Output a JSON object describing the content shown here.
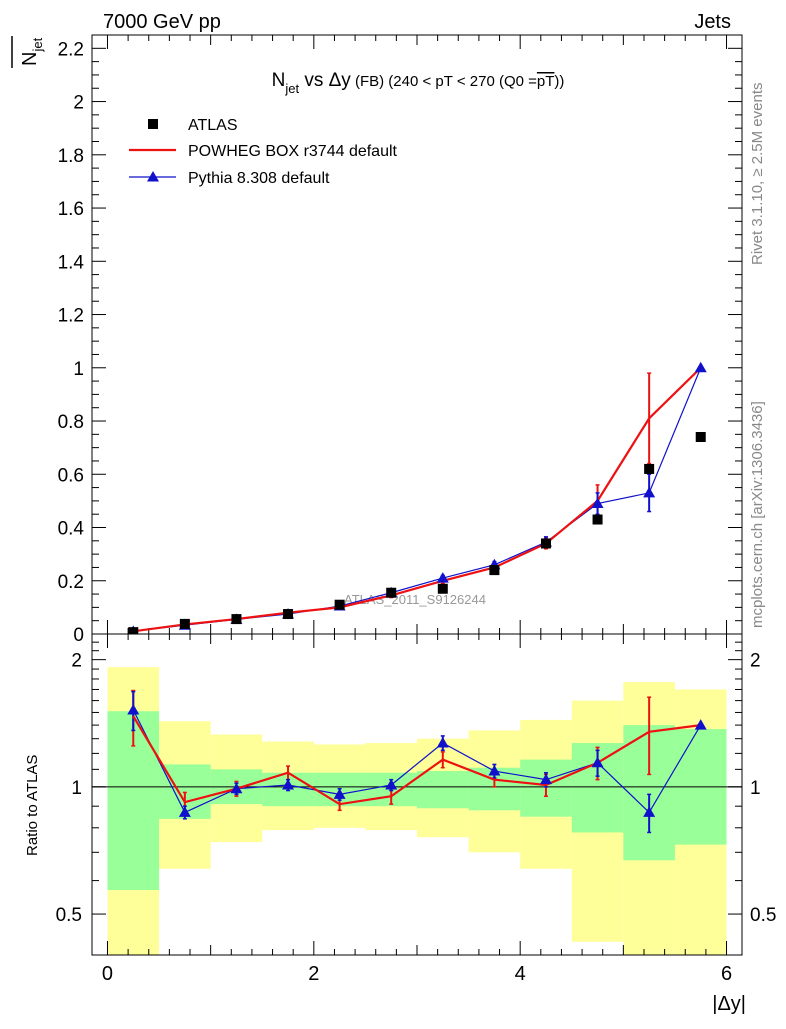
{
  "header": {
    "left": "7000 GeV pp",
    "right": "Jets",
    "title": "N",
    "title_sub": "jet",
    "title_mid": " vs Δy",
    "title_small": " (FB)",
    "title_tail": " (240 < pT < 270 (Q0 =",
    "title_over": "pT",
    "title_end": "))",
    "ylabel": "N",
    "ylabel_sub": "jet",
    "watermark": "ATLAS_2011_S9126244",
    "side_rivet": "Rivet 3.1.10, ≥ 2.5M events",
    "side_mcplots": "mcplots.cern.ch [arXiv:1306.3436]"
  },
  "legend": [
    {
      "label": "ATLAS",
      "marker": "square",
      "color": "#000000"
    },
    {
      "label": "POWHEG BOX r3744 default",
      "marker": "line",
      "color": "#ee1111"
    },
    {
      "label": "Pythia 8.308 default",
      "marker": "triangle",
      "color": "#1111cc"
    }
  ],
  "chart_data": {
    "type": "line",
    "title": "N_jet vs Δy (FB) (240 < pT < 270 (Q0 = pT))",
    "xlabel": "|Δy|",
    "ylabel": "N_jet",
    "xlim": [
      -0.15,
      6.15
    ],
    "ylim": [
      0,
      2.25
    ],
    "xticks": [
      0,
      2,
      4,
      6
    ],
    "yticks": [
      0.2,
      0.4,
      0.6,
      0.8,
      1,
      1.2,
      1.4,
      1.6,
      1.8,
      2,
      2.2
    ],
    "bin_edges": [
      0,
      0.5,
      1,
      1.5,
      2,
      2.5,
      3,
      3.5,
      4,
      4.5,
      5,
      5.5,
      6
    ],
    "x": [
      0.25,
      0.75,
      1.25,
      1.75,
      2.25,
      2.75,
      3.25,
      3.75,
      4.25,
      4.75,
      5.25,
      5.75
    ],
    "series": [
      {
        "name": "ATLAS",
        "values": [
          0.007,
          0.038,
          0.056,
          0.075,
          0.11,
          0.155,
          0.17,
          0.24,
          0.34,
          0.43,
          0.62,
          0.74
        ]
      },
      {
        "name": "POWHEG BOX r3744 default",
        "values": [
          0.01,
          0.036,
          0.056,
          0.08,
          0.1,
          0.145,
          0.2,
          0.25,
          0.34,
          0.5,
          0.81,
          1.0
        ],
        "errors": [
          0.002,
          0.003,
          0.004,
          0.005,
          0.006,
          0.008,
          0.01,
          0.012,
          0.02,
          0.06,
          0.17,
          0.0
        ]
      },
      {
        "name": "Pythia 8.308 default",
        "values": [
          0.01,
          0.033,
          0.055,
          0.075,
          0.105,
          0.155,
          0.21,
          0.26,
          0.345,
          0.49,
          0.53,
          1.0
        ],
        "errors": [
          0.002,
          0.003,
          0.004,
          0.005,
          0.006,
          0.008,
          0.01,
          0.012,
          0.02,
          0.04,
          0.07,
          0.0
        ]
      }
    ],
    "ratio": {
      "ylabel": "Ratio to ATLAS",
      "ylim": [
        0.4,
        2.3
      ],
      "log_scale": true,
      "yticks": [
        0.5,
        1,
        2
      ],
      "band_inner": [
        [
          0.57,
          1.51
        ],
        [
          0.84,
          1.13
        ],
        [
          0.91,
          1.1
        ],
        [
          0.9,
          1.08
        ],
        [
          0.9,
          1.08
        ],
        [
          0.9,
          1.08
        ],
        [
          0.89,
          1.09
        ],
        [
          0.88,
          1.11
        ],
        [
          0.85,
          1.16
        ],
        [
          0.78,
          1.27
        ],
        [
          0.67,
          1.4
        ],
        [
          0.73,
          1.37
        ]
      ],
      "band_outer": [
        [
          0.38,
          1.92
        ],
        [
          0.64,
          1.43
        ],
        [
          0.74,
          1.33
        ],
        [
          0.79,
          1.28
        ],
        [
          0.8,
          1.26
        ],
        [
          0.79,
          1.27
        ],
        [
          0.76,
          1.3
        ],
        [
          0.7,
          1.36
        ],
        [
          0.64,
          1.44
        ],
        [
          0.43,
          1.6
        ],
        [
          0.38,
          1.77
        ],
        [
          0.38,
          1.7
        ]
      ],
      "series": [
        {
          "name": "POWHEG BOX r3744 default",
          "values": [
            1.47,
            0.92,
            0.99,
            1.08,
            0.91,
            0.95,
            1.16,
            1.04,
            1.01,
            1.14,
            1.35,
            1.4
          ],
          "errors": [
            0.22,
            0.05,
            0.04,
            0.04,
            0.03,
            0.04,
            0.05,
            0.04,
            0.06,
            0.1,
            0.28,
            0.0
          ]
        },
        {
          "name": "Pythia 8.308 default",
          "values": [
            1.52,
            0.87,
            0.99,
            1.01,
            0.96,
            1.01,
            1.27,
            1.09,
            1.04,
            1.14,
            0.87,
            1.4
          ],
          "errors": [
            0.16,
            0.03,
            0.03,
            0.03,
            0.03,
            0.03,
            0.05,
            0.04,
            0.04,
            0.08,
            0.09,
            0.0
          ]
        }
      ]
    }
  }
}
